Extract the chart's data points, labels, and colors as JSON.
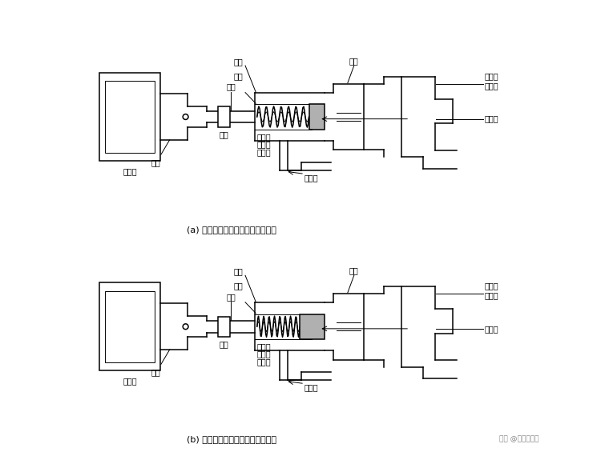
{
  "bg_color": "#ffffff",
  "line_color": "#000000",
  "caption_a": "(a) 洗涤、漂洗状态（电磁铁断电）",
  "caption_b": "(b) 排水、脱水状态（电磁铁通电）",
  "watermark": "头条 @哥专修电器",
  "labels": {
    "electromagnet": "电磁铁",
    "armature": "衔铁",
    "pull_rod": "拉杆",
    "stop_sleeve": "挡套",
    "guide_sleeve": "导套",
    "valve_cover": "阀盖",
    "valve_seat": "阀座",
    "inner_spring": "内弹簧",
    "outer_spring": "外弹簧",
    "rubber_valve": "橡胶阀",
    "drain_port": "排水口",
    "overflow_port": "溢水口",
    "water_tank_outlet_1": "盛水桶",
    "water_tank_outlet_2": "出水口"
  },
  "font_size": 7.0,
  "font_size_caption": 8.0
}
